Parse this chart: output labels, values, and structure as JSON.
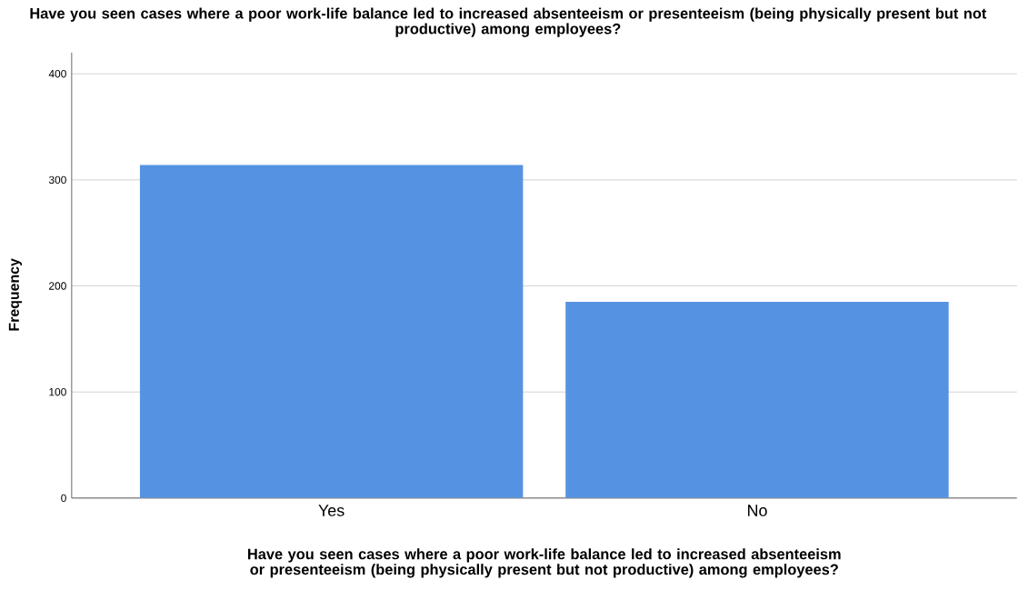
{
  "chart_data": {
    "type": "bar",
    "title": "Have you seen cases where a poor work-life balance led to increased absenteeism or presenteeism (being physically present but not productive) among employees?",
    "xlabel": "Have you seen cases where a poor work-life balance led to increased absenteeism or presenteeism (being physically present but not productive) among employees?",
    "ylabel": "Frequency",
    "categories": [
      "Yes",
      "No"
    ],
    "values": [
      314,
      185
    ],
    "color": "#5593e2",
    "ylim": [
      0,
      420
    ],
    "yticks": [
      0,
      100,
      200,
      300,
      400
    ],
    "grid": "y"
  }
}
